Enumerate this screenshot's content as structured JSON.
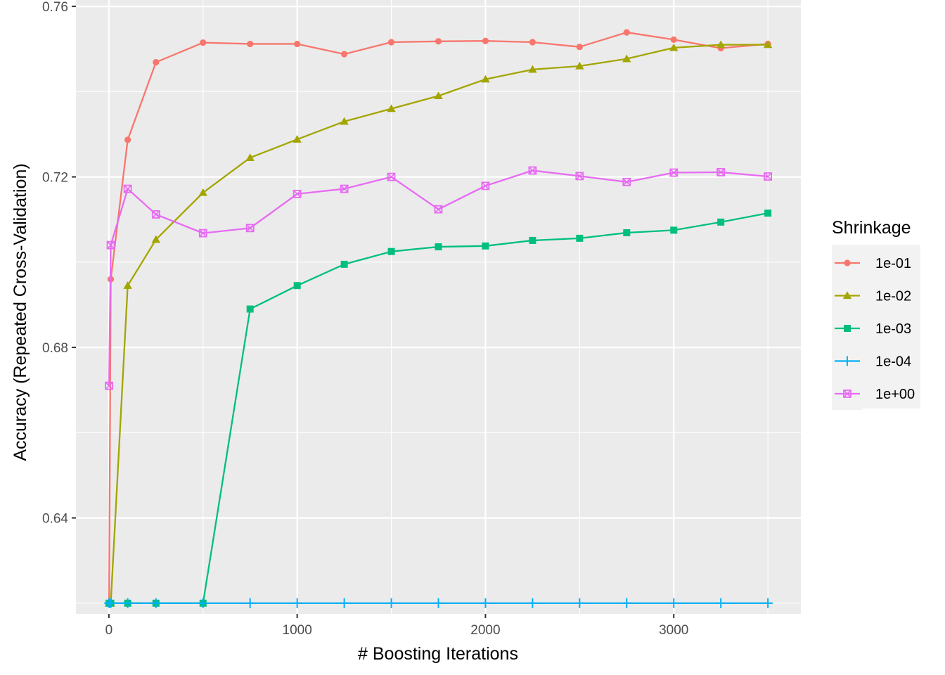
{
  "chart_data": {
    "type": "line",
    "title": "",
    "xlabel": "# Boosting Iterations",
    "ylabel": "Accuracy (Repeated Cross-Validation)",
    "xlim": [
      -175,
      3675
    ],
    "ylim": [
      0.6175,
      0.7615
    ],
    "xticks": [
      0,
      1000,
      2000,
      3000
    ],
    "xtick_labels": [
      "0",
      "1000",
      "2000",
      "3000"
    ],
    "yticks": [
      0.64,
      0.68,
      0.72,
      0.76
    ],
    "ytick_labels": [
      "0.64",
      "0.68",
      "0.72",
      "0.76"
    ],
    "grid": true,
    "legend": {
      "title": "Shrinkage",
      "placement": "right"
    },
    "series": [
      {
        "name": "1e-01",
        "color": "#F8766D",
        "marker": "circle",
        "x": [
          1,
          10,
          100,
          250,
          500,
          750,
          1000,
          1250,
          1500,
          1750,
          2000,
          2250,
          2500,
          2750,
          3000,
          3250,
          3500
        ],
        "y": [
          0.62,
          0.696,
          0.7287,
          0.7469,
          0.7515,
          0.7512,
          0.7512,
          0.7488,
          0.7516,
          0.7518,
          0.7519,
          0.7516,
          0.7505,
          0.7539,
          0.7522,
          0.7502,
          0.7512
        ]
      },
      {
        "name": "1e-02",
        "color": "#A3A500",
        "marker": "triangle",
        "x": [
          1,
          10,
          100,
          250,
          500,
          750,
          1000,
          1250,
          1500,
          1750,
          2000,
          2250,
          2500,
          2750,
          3000,
          3250,
          3500
        ],
        "y": [
          0.62,
          0.62,
          0.6945,
          0.7053,
          0.7163,
          0.7245,
          0.7288,
          0.733,
          0.736,
          0.739,
          0.7429,
          0.7452,
          0.746,
          0.7477,
          0.7503,
          0.751,
          0.751
        ]
      },
      {
        "name": "1e-03",
        "color": "#00BF7D",
        "marker": "square",
        "x": [
          1,
          10,
          100,
          250,
          500,
          750,
          1000,
          1250,
          1500,
          1750,
          2000,
          2250,
          2500,
          2750,
          3000,
          3250,
          3500
        ],
        "y": [
          0.62,
          0.62,
          0.62,
          0.62,
          0.62,
          0.689,
          0.6945,
          0.6995,
          0.7025,
          0.7036,
          0.7038,
          0.7051,
          0.7056,
          0.7069,
          0.7075,
          0.7094,
          0.7115
        ]
      },
      {
        "name": "1e-04",
        "color": "#00B0F6",
        "marker": "plus",
        "x": [
          1,
          10,
          100,
          250,
          500,
          750,
          1000,
          1250,
          1500,
          1750,
          2000,
          2250,
          2500,
          2750,
          3000,
          3250,
          3500
        ],
        "y": [
          0.62,
          0.62,
          0.62,
          0.62,
          0.62,
          0.62,
          0.62,
          0.62,
          0.62,
          0.62,
          0.62,
          0.62,
          0.62,
          0.62,
          0.62,
          0.62,
          0.62
        ]
      },
      {
        "name": "1e+00",
        "color": "#E76BF3",
        "marker": "square-x",
        "x": [
          1,
          10,
          100,
          250,
          500,
          750,
          1000,
          1250,
          1500,
          1750,
          2000,
          2250,
          2500,
          2750,
          3000,
          3250,
          3500
        ],
        "y": [
          0.671,
          0.704,
          0.7172,
          0.7112,
          0.7068,
          0.708,
          0.716,
          0.7172,
          0.72,
          0.7124,
          0.7179,
          0.7215,
          0.7202,
          0.7188,
          0.721,
          0.7211,
          0.7201
        ]
      }
    ]
  }
}
